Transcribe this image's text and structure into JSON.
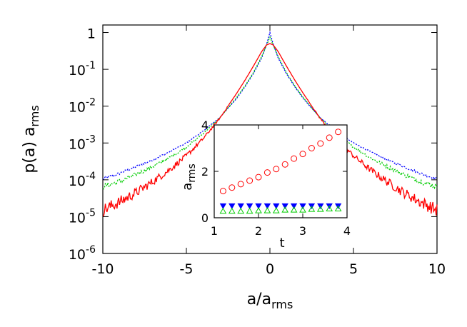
{
  "chart_data": [
    {
      "type": "line",
      "title": "",
      "xlabel": "a/a",
      "xlabel_sub": "rms",
      "ylabel": "p(a) a",
      "ylabel_sub": "rms",
      "xlim": [
        -10,
        10
      ],
      "ylim": [
        1e-06,
        1.6
      ],
      "yscale": "log",
      "grid": false,
      "legend": "none",
      "x_ticks": [
        "-10",
        "-5",
        "0",
        "5",
        "10"
      ],
      "y_ticks": [
        {
          "value": 1,
          "base": "1",
          "exp": ""
        },
        {
          "value": 0.1,
          "base": "10",
          "exp": "-1"
        },
        {
          "value": 0.01,
          "base": "10",
          "exp": "-2"
        },
        {
          "value": 0.001,
          "base": "10",
          "exp": "-3"
        },
        {
          "value": 0.0001,
          "base": "10",
          "exp": "-4"
        },
        {
          "value": 1e-05,
          "base": "10",
          "exp": "-5"
        },
        {
          "value": 1e-06,
          "base": "10",
          "exp": "-6"
        }
      ],
      "series": [
        {
          "color": "#0000ff",
          "style": "dotted",
          "x": [
            -10,
            -9,
            -8,
            -7,
            -6,
            -5,
            -4,
            -3,
            -2,
            -1.5,
            -1,
            -0.5,
            -0.2,
            0,
            0.2,
            0.5,
            1,
            1.5,
            2,
            3,
            4,
            5,
            6,
            7,
            8,
            9,
            10
          ],
          "y": [
            0.000105,
            0.00015,
            0.00023,
            0.00035,
            0.00058,
            0.001,
            0.0021,
            0.0049,
            0.016,
            0.033,
            0.075,
            0.2,
            0.48,
            1.0,
            0.48,
            0.2,
            0.075,
            0.033,
            0.016,
            0.0049,
            0.0021,
            0.001,
            0.00058,
            0.00035,
            0.00023,
            0.00015,
            0.000105
          ]
        },
        {
          "color": "#00cc00",
          "style": "dotted",
          "x": [
            -10,
            -9,
            -8,
            -7,
            -6,
            -5,
            -4,
            -3,
            -2,
            -1.5,
            -1,
            -0.5,
            -0.2,
            0,
            0.2,
            0.5,
            1,
            1.5,
            2,
            3,
            4,
            5,
            6,
            7,
            8,
            9,
            10
          ],
          "y": [
            6.5e-05,
            9e-05,
            0.00014,
            0.00023,
            0.0004,
            0.00078,
            0.0018,
            0.0048,
            0.017,
            0.035,
            0.08,
            0.22,
            0.45,
            0.75,
            0.45,
            0.22,
            0.08,
            0.035,
            0.017,
            0.0048,
            0.0018,
            0.00078,
            0.0004,
            0.00023,
            0.00014,
            9e-05,
            6.5e-05
          ]
        },
        {
          "color": "#ff0000",
          "style": "solid",
          "x": [
            -10,
            -9,
            -8,
            -7,
            -6,
            -5,
            -4,
            -3,
            -2,
            -1.5,
            -1,
            -0.5,
            -0.2,
            0,
            0.2,
            0.5,
            1,
            1.5,
            2,
            3,
            4,
            5,
            6,
            7,
            8,
            9,
            10
          ],
          "y": [
            1.5e-05,
            2.5e-05,
            4.5e-05,
            9e-05,
            0.00019,
            0.00045,
            0.0013,
            0.0047,
            0.022,
            0.05,
            0.12,
            0.3,
            0.46,
            0.5,
            0.46,
            0.3,
            0.12,
            0.05,
            0.022,
            0.0047,
            0.0013,
            0.00045,
            0.00019,
            9e-05,
            4.5e-05,
            2.5e-05,
            1.5e-05
          ]
        }
      ]
    },
    {
      "type": "scatter",
      "title": "",
      "xlabel": "t",
      "ylabel": "a",
      "ylabel_sub": "rms",
      "xlim": [
        1,
        4
      ],
      "ylim": [
        0,
        4
      ],
      "grid": false,
      "legend": "none",
      "x_ticks": [
        "1",
        "2",
        "3",
        "4"
      ],
      "y_ticks": [
        "0",
        "2",
        "4"
      ],
      "series": [
        {
          "color": "#ff0000",
          "marker": "open-circle",
          "x": [
            1.2,
            1.4,
            1.6,
            1.8,
            2.0,
            2.2,
            2.4,
            2.6,
            2.8,
            3.0,
            3.2,
            3.4,
            3.6,
            3.8
          ],
          "y": [
            1.15,
            1.3,
            1.45,
            1.6,
            1.75,
            1.95,
            2.1,
            2.3,
            2.55,
            2.75,
            3.0,
            3.2,
            3.45,
            3.7
          ]
        },
        {
          "color": "#0000ff",
          "marker": "filled-triangle-down",
          "x": [
            1.2,
            1.4,
            1.6,
            1.8,
            2.0,
            2.2,
            2.4,
            2.6,
            2.8,
            3.0,
            3.2,
            3.4,
            3.6,
            3.8
          ],
          "y": [
            0.5,
            0.5,
            0.5,
            0.5,
            0.5,
            0.5,
            0.5,
            0.5,
            0.5,
            0.5,
            0.5,
            0.5,
            0.5,
            0.5
          ]
        },
        {
          "color": "#00cc00",
          "marker": "open-triangle-up",
          "x": [
            1.2,
            1.4,
            1.6,
            1.8,
            2.0,
            2.2,
            2.4,
            2.6,
            2.8,
            3.0,
            3.2,
            3.4,
            3.6,
            3.8
          ],
          "y": [
            0.3,
            0.3,
            0.3,
            0.3,
            0.32,
            0.32,
            0.32,
            0.35,
            0.35,
            0.35,
            0.38,
            0.38,
            0.4,
            0.4
          ]
        }
      ]
    }
  ]
}
